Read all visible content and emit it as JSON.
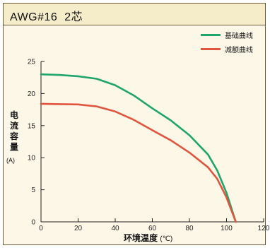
{
  "header": {
    "title": "AWG#16  2芯"
  },
  "chart_data": {
    "type": "line",
    "title": "AWG#16  2芯",
    "xlabel": "环境温度",
    "xunit": "(℃)",
    "ylabel": "电流容量",
    "yunit": "(A)",
    "xlim": [
      0,
      120
    ],
    "ylim": [
      0,
      25
    ],
    "xticks": [
      0,
      20,
      40,
      60,
      80,
      100,
      120
    ],
    "yticks": [
      0,
      5,
      10,
      15,
      20,
      25
    ],
    "grid": false,
    "legend_position": "top-right",
    "series": [
      {
        "name": "基础曲线",
        "color": "#1fa56b",
        "x": [
          0,
          10,
          20,
          30,
          40,
          50,
          60,
          70,
          80,
          90,
          95,
          100,
          105
        ],
        "y": [
          23,
          22.9,
          22.7,
          22.3,
          21.3,
          19.7,
          17.7,
          15.8,
          13.5,
          10.5,
          8.0,
          4.5,
          0
        ]
      },
      {
        "name": "减额曲线",
        "color": "#e0553e",
        "x": [
          0,
          10,
          20,
          30,
          40,
          50,
          60,
          70,
          80,
          90,
          95,
          100,
          105
        ],
        "y": [
          18.4,
          18.35,
          18.3,
          18.0,
          17.2,
          15.9,
          14.3,
          12.7,
          10.8,
          8.5,
          6.7,
          3.8,
          0
        ]
      }
    ]
  }
}
